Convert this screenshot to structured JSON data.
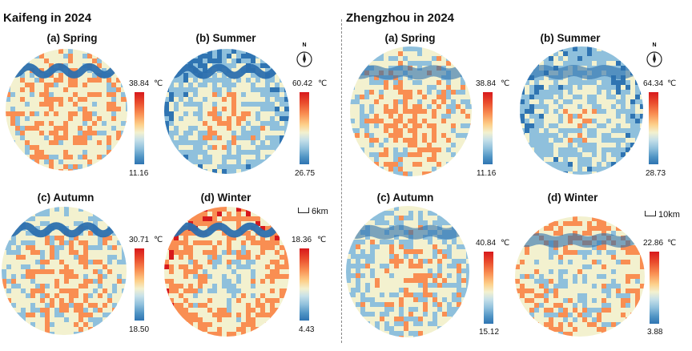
{
  "kaifeng": {
    "title": "Kaifeng in 2024",
    "panels": {
      "spring": {
        "label": "(a) Spring",
        "max": "38.84",
        "min": "11.16",
        "unit": "℃"
      },
      "summer": {
        "label": "(b) Summer",
        "max": "60.42",
        "min": "26.75",
        "unit": "℃"
      },
      "autumn": {
        "label": "(c) Autumn",
        "max": "30.71",
        "min": "18.50",
        "unit": "℃"
      },
      "winter": {
        "label": "(d) Winter",
        "max": "18.36",
        "min": "4.43",
        "unit": "℃"
      }
    },
    "north_label": "N",
    "scale_label": "6km"
  },
  "zhengzhou": {
    "title": "Zhengzhou in 2024",
    "panels": {
      "spring": {
        "label": "(a) Spring",
        "max": "38.84",
        "min": "11.16",
        "unit": "℃"
      },
      "summer": {
        "label": "(b) Summer",
        "max": "64.34",
        "min": "28.73",
        "unit": "℃"
      },
      "autumn": {
        "label": "(c) Autumn",
        "max": "40.84",
        "min": "15.12",
        "unit": "℃"
      },
      "winter": {
        "label": "(d) Winter",
        "max": "22.86",
        "min": "3.88",
        "unit": "℃"
      }
    },
    "north_label": "N",
    "scale_label": "10km"
  },
  "colors": {
    "hot": "#d7191c",
    "warm": "#f98e52",
    "mid": "#f3f1cf",
    "cool": "#8fc0dc",
    "cold": "#2f74b2",
    "river": "#2c6fae"
  }
}
